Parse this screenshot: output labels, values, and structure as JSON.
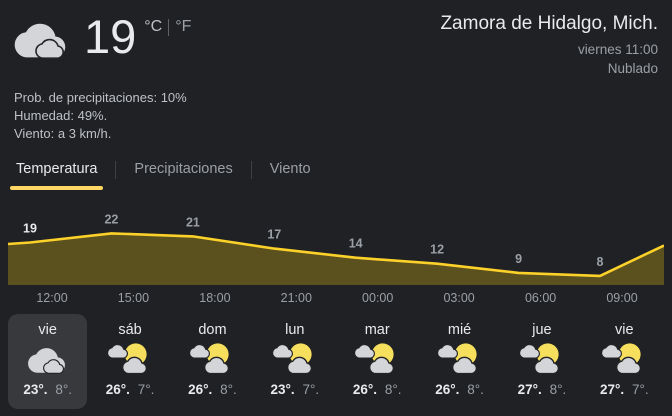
{
  "current": {
    "temp": "19",
    "unit_c": "°C",
    "unit_f": "°F",
    "icon": "cloudy",
    "details": [
      "Prob. de precipitaciones: 10%",
      "Humedad: 49%.",
      "Viento: a 3 km/h."
    ]
  },
  "location": {
    "title": "Zamora de Hidalgo, Mich.",
    "datetime": "viernes 11:00",
    "condition": "Nublado"
  },
  "tabs": [
    {
      "label": "Temperatura",
      "active": true
    },
    {
      "label": "Precipitaciones",
      "active": false
    },
    {
      "label": "Viento",
      "active": false
    }
  ],
  "chart_data": {
    "type": "area",
    "title": "Temperatura",
    "x": [
      "12:00",
      "15:00",
      "18:00",
      "21:00",
      "00:00",
      "03:00",
      "06:00",
      "09:00"
    ],
    "values": [
      19,
      22,
      21,
      17,
      14,
      12,
      9,
      8
    ],
    "edge_start_value": 18.5,
    "edge_end_value": 18,
    "ylim": [
      5,
      32
    ],
    "grid": false,
    "legend": false,
    "line_color": "#fcd12a",
    "fill_color": "#5b511f",
    "label_color": "#9aa0a6",
    "first_label_color": "#e8eaed"
  },
  "forecast": [
    {
      "day": "vie",
      "icon": "cloudy",
      "high": "23°.",
      "low": "8°.",
      "selected": true
    },
    {
      "day": "sáb",
      "icon": "sun-cloud",
      "high": "26°.",
      "low": "7°.",
      "selected": false
    },
    {
      "day": "dom",
      "icon": "sun-cloud",
      "high": "26°.",
      "low": "8°.",
      "selected": false
    },
    {
      "day": "lun",
      "icon": "sun-cloud",
      "high": "23°.",
      "low": "7°.",
      "selected": false
    },
    {
      "day": "mar",
      "icon": "sun-cloud",
      "high": "26°.",
      "low": "8°.",
      "selected": false
    },
    {
      "day": "mié",
      "icon": "sun-cloud",
      "high": "26°.",
      "low": "8°.",
      "selected": false
    },
    {
      "day": "jue",
      "icon": "sun-cloud",
      "high": "27°.",
      "low": "8°.",
      "selected": false
    },
    {
      "day": "vie",
      "icon": "sun-cloud",
      "high": "27°.",
      "low": "7°.",
      "selected": false
    }
  ],
  "colors": {
    "background": "#202124",
    "text_primary": "#e8eaed",
    "text_secondary": "#9aa0a6",
    "accent_yellow": "#fdd663",
    "chart_line": "#fcd12a",
    "chart_fill": "#5b511f",
    "selected_day_bg": "#37393d",
    "cloud_gray": "#d3d5d8",
    "sun_yellow": "#f7df5e"
  }
}
